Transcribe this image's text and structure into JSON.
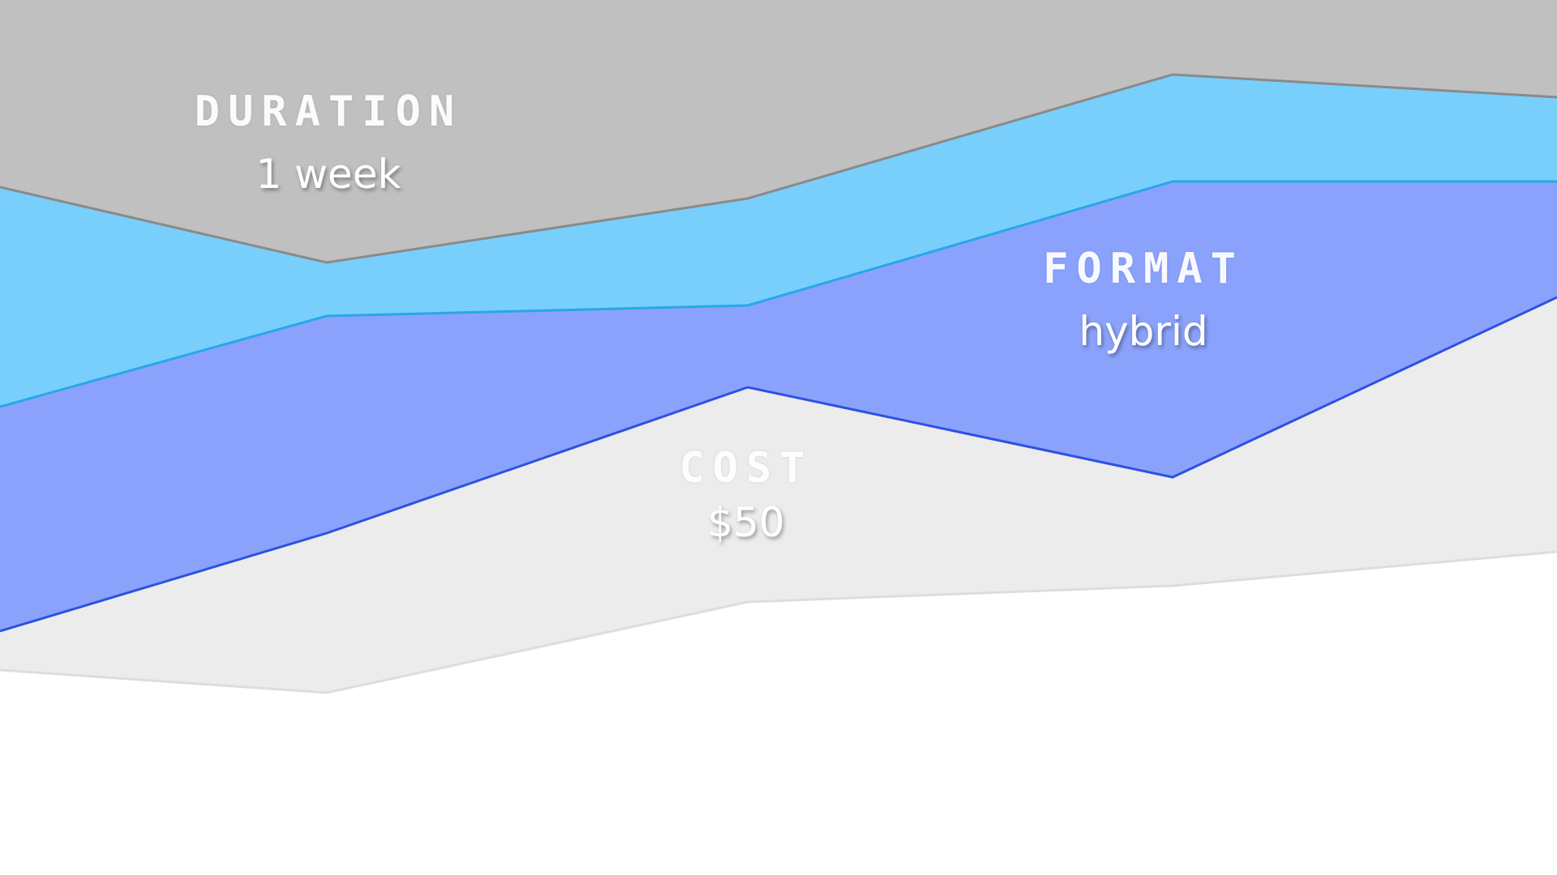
{
  "layers": [
    {
      "id": "duration",
      "heading": "DURATION",
      "value": "1 week",
      "fill": "#bfc0bf",
      "stroke": "#8a8a8a"
    },
    {
      "id": "light-blue",
      "fill": "#79cffc",
      "stroke": "#29a7e8"
    },
    {
      "id": "format",
      "heading": "FORMAT",
      "value": "hybrid",
      "fill": "#8aa2fb",
      "stroke": "#2f51e0"
    },
    {
      "id": "cost",
      "heading": "COST",
      "value": "$50",
      "fill": "#ececec",
      "stroke": "#dddddd"
    }
  ],
  "labels": {
    "duration": {
      "heading": "DURATION",
      "value": "1 week"
    },
    "format": {
      "heading": "FORMAT",
      "value": "hybrid"
    },
    "cost": {
      "heading": "COST",
      "value": "$50"
    }
  },
  "colors": {
    "background": "#ffffff",
    "text": "#ffffff"
  }
}
